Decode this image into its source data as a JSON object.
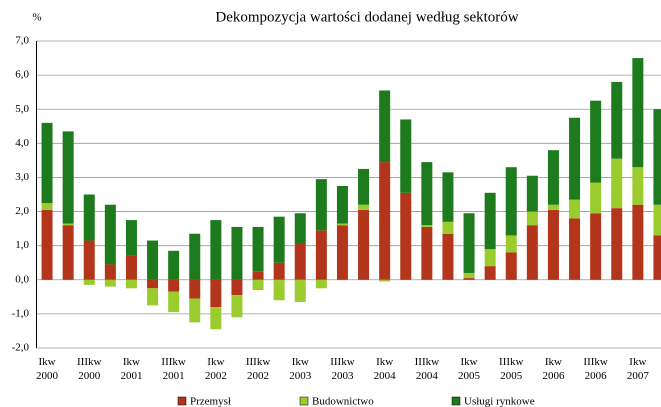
{
  "chart_data": {
    "type": "stacked_bar",
    "title": "Dekompozycja wartości dodanej według sektorów",
    "y_label": "%",
    "categories": [
      "Ikw 2000",
      null,
      "IIIkw 2000",
      null,
      "Ikw 2001",
      null,
      "IIIkw 2001",
      null,
      "Ikw 2002",
      null,
      "IIIkw 2002",
      null,
      "Ikw 2003",
      null,
      "IIIkw 2003",
      null,
      "Ikw 2004",
      null,
      "IIIkw 2004",
      null,
      "Ikw 2005",
      null,
      "IIIkw 2005",
      null,
      "Ikw 2006",
      null,
      "IIIkw 2006",
      null,
      "Ikw 2007",
      null
    ],
    "series": [
      {
        "name": "Przemysł",
        "color": "#b3361c",
        "values": [
          2.05,
          1.6,
          1.15,
          0.45,
          0.7,
          -0.25,
          -0.35,
          -0.55,
          -0.8,
          -0.45,
          0.25,
          0.5,
          1.05,
          1.45,
          1.6,
          2.05,
          3.45,
          2.55,
          1.55,
          1.35,
          0.05,
          0.4,
          0.8,
          1.6,
          2.05,
          1.8,
          1.95,
          2.1,
          2.2,
          1.3
        ]
      },
      {
        "name": "Budownictwo",
        "color": "#9bcc2e",
        "values": [
          0.2,
          0.05,
          -0.15,
          -0.2,
          -0.25,
          -0.5,
          -0.6,
          -0.7,
          -0.65,
          -0.65,
          -0.3,
          -0.6,
          -0.65,
          -0.25,
          0.05,
          0.15,
          -0.05,
          0,
          0.05,
          0.35,
          0.15,
          0.5,
          0.5,
          0.4,
          0.15,
          0.55,
          0.9,
          1.45,
          1.1,
          0.9
        ]
      },
      {
        "name": "Usługi rynkowe",
        "color": "#1d7a1d",
        "values": [
          2.35,
          2.7,
          1.35,
          1.75,
          1.05,
          1.15,
          0.85,
          1.35,
          1.75,
          1.55,
          1.3,
          1.35,
          0.9,
          1.5,
          1.1,
          1.05,
          2.1,
          2.15,
          1.85,
          1.45,
          1.75,
          1.65,
          2.0,
          1.05,
          1.6,
          2.4,
          2.4,
          2.25,
          3.2,
          2.8
        ]
      }
    ],
    "ylim": [
      -2,
      7
    ],
    "yticks": [
      {
        "value": -2,
        "label": "-2,0"
      },
      {
        "value": -1,
        "label": "-1,0"
      },
      {
        "value": 0,
        "label": "0,0"
      },
      {
        "value": 1,
        "label": "1,0"
      },
      {
        "value": 2,
        "label": "2,0"
      },
      {
        "value": 3,
        "label": "3,0"
      },
      {
        "value": 4,
        "label": "4,0"
      },
      {
        "value": 5,
        "label": "5,0"
      },
      {
        "value": 6,
        "label": "6,0"
      },
      {
        "value": 7,
        "label": "7,0"
      }
    ],
    "grid": true
  }
}
